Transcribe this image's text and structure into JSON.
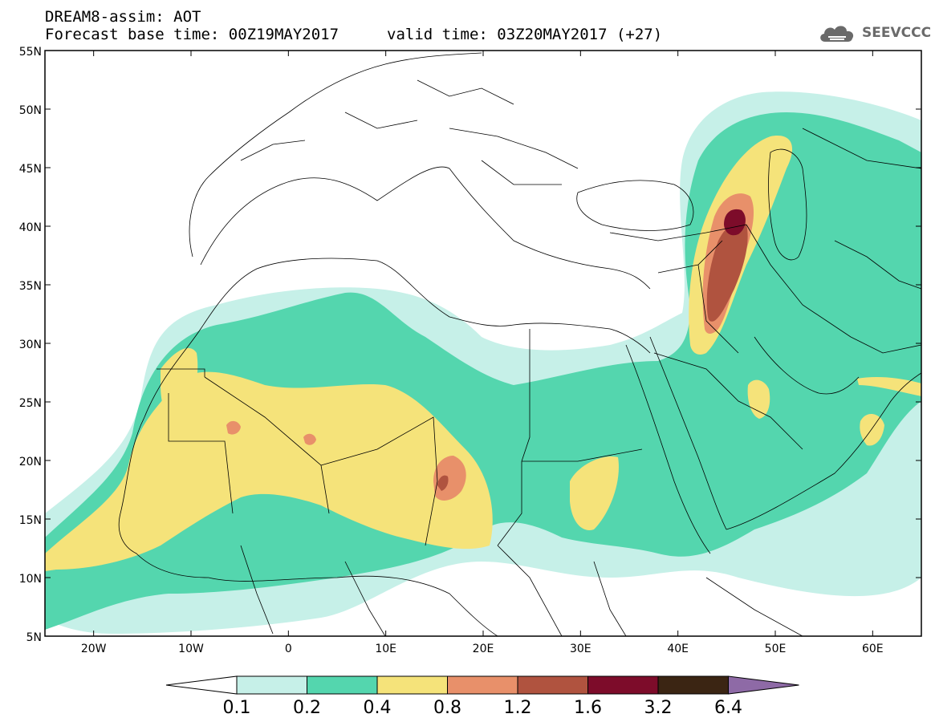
{
  "title": {
    "line1": "DREAM8-assim: AOT",
    "line2": "Forecast base time: 00Z19MAY2017",
    "valid": "valid time: 03Z20MAY2017 (+27)"
  },
  "logo": {
    "text": "SEEVCCC",
    "icon": "cloud-icon"
  },
  "axes": {
    "lat_labels": [
      "55N",
      "50N",
      "45N",
      "40N",
      "35N",
      "30N",
      "25N",
      "20N",
      "15N",
      "10N",
      "5N"
    ],
    "lat_values": [
      55,
      50,
      45,
      40,
      35,
      30,
      25,
      20,
      15,
      10,
      5
    ],
    "lon_labels": [
      "20W",
      "10W",
      "0",
      "10E",
      "20E",
      "30E",
      "40E",
      "50E",
      "60E"
    ],
    "lon_values": [
      -20,
      -10,
      0,
      10,
      20,
      30,
      40,
      50,
      60
    ],
    "lon_range": [
      -25,
      65
    ],
    "lat_range": [
      5,
      55
    ]
  },
  "colorbar": {
    "labels": [
      "0.1",
      "0.2",
      "0.4",
      "0.8",
      "1.2",
      "1.6",
      "3.2",
      "6.4"
    ],
    "colors": [
      "#ffffff",
      "#c6f0e8",
      "#54d6ae",
      "#f5e37a",
      "#e8906a",
      "#b0533f",
      "#7d0c2a",
      "#3b2513",
      "#8e6aa6"
    ]
  },
  "field_colors": {
    "c1": "#c6f0e8",
    "c2": "#54d6ae",
    "c3": "#f5e37a",
    "c4": "#e8906a",
    "c5": "#b0533f",
    "c6": "#7d0c2a"
  }
}
